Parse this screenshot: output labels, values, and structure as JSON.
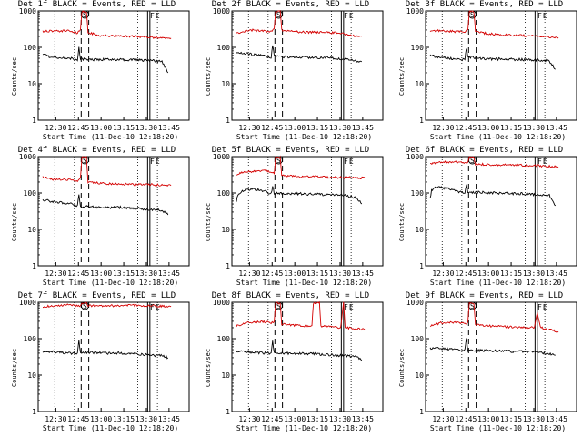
{
  "chart_data": {
    "type": "line",
    "ylabel": "Counts/sec",
    "xlabel": "Start Time (11-Dec-10 12:18:20)",
    "yscale": "log",
    "ylim": [
      1,
      1000
    ],
    "y_ticks": [
      {
        "value": 1,
        "label": "1"
      },
      {
        "value": 10,
        "label": "10"
      },
      {
        "value": 100,
        "label": "100"
      },
      {
        "value": 1000,
        "label": "1000"
      }
    ],
    "x_range_minutes": [
      0,
      100
    ],
    "x_ticks": [
      {
        "value": 11.67,
        "label": "12:30"
      },
      {
        "value": 26.67,
        "label": "12:45"
      },
      {
        "value": 41.67,
        "label": "13:00"
      },
      {
        "value": 56.67,
        "label": "13:15"
      },
      {
        "value": 71.67,
        "label": "13:30"
      },
      {
        "value": 86.67,
        "label": "13:45"
      }
    ],
    "markers": {
      "S": {
        "label": "S",
        "span": [
          28.5,
          33.5
        ]
      },
      "F": {
        "label": "F",
        "at": 73.5
      },
      "E": {
        "label": "E",
        "at": 77.0
      }
    },
    "dotted_lines": [
      11.0,
      24.0,
      66.0,
      79.0
    ],
    "dashed_lines": [
      28.5,
      33.5
    ],
    "solid_lines": [
      72.5,
      74.0
    ],
    "series_colors": {
      "events": "#000000",
      "lld": "#d40000"
    },
    "panels": [
      {
        "title": "Det 1f BLACK = Events, RED = LLD",
        "lld": [
          [
            3,
            270
          ],
          [
            10,
            285
          ],
          [
            20,
            280
          ],
          [
            26,
            250
          ],
          [
            28,
            300
          ],
          [
            29,
            950
          ],
          [
            32,
            950
          ],
          [
            33,
            260
          ],
          [
            40,
            210
          ],
          [
            50,
            205
          ],
          [
            60,
            200
          ],
          [
            70,
            195
          ],
          [
            80,
            185
          ],
          [
            88,
            180
          ]
        ],
        "events": [
          [
            3,
            65
          ],
          [
            8,
            55
          ],
          [
            15,
            52
          ],
          [
            22,
            50
          ],
          [
            26,
            42
          ],
          [
            27,
            100
          ],
          [
            28,
            48
          ],
          [
            35,
            45
          ],
          [
            45,
            47
          ],
          [
            55,
            46
          ],
          [
            65,
            45
          ],
          [
            75,
            44
          ],
          [
            82,
            40
          ],
          [
            86,
            20
          ]
        ]
      },
      {
        "title": "Det 2f BLACK = Events, RED = LLD",
        "lld": [
          [
            3,
            240
          ],
          [
            12,
            300
          ],
          [
            20,
            280
          ],
          [
            26,
            270
          ],
          [
            28,
            320
          ],
          [
            29,
            950
          ],
          [
            32,
            950
          ],
          [
            33,
            300
          ],
          [
            45,
            260
          ],
          [
            55,
            260
          ],
          [
            65,
            250
          ],
          [
            72,
            250
          ],
          [
            80,
            210
          ],
          [
            86,
            200
          ]
        ],
        "events": [
          [
            3,
            75
          ],
          [
            8,
            70
          ],
          [
            15,
            62
          ],
          [
            22,
            58
          ],
          [
            26,
            52
          ],
          [
            27,
            120
          ],
          [
            28,
            58
          ],
          [
            35,
            55
          ],
          [
            45,
            54
          ],
          [
            55,
            52
          ],
          [
            65,
            52
          ],
          [
            72,
            48
          ],
          [
            80,
            45
          ],
          [
            86,
            40
          ]
        ]
      },
      {
        "title": "Det 3f BLACK = Events, RED = LLD",
        "lld": [
          [
            3,
            290
          ],
          [
            10,
            290
          ],
          [
            20,
            270
          ],
          [
            26,
            270
          ],
          [
            28,
            300
          ],
          [
            29,
            950
          ],
          [
            32,
            950
          ],
          [
            33,
            260
          ],
          [
            45,
            230
          ],
          [
            55,
            220
          ],
          [
            65,
            210
          ],
          [
            75,
            200
          ],
          [
            82,
            195
          ],
          [
            88,
            185
          ]
        ],
        "events": [
          [
            3,
            60
          ],
          [
            8,
            55
          ],
          [
            15,
            50
          ],
          [
            22,
            48
          ],
          [
            26,
            45
          ],
          [
            27,
            95
          ],
          [
            28,
            55
          ],
          [
            35,
            50
          ],
          [
            45,
            48
          ],
          [
            55,
            47
          ],
          [
            65,
            46
          ],
          [
            75,
            45
          ],
          [
            82,
            42
          ],
          [
            86,
            25
          ]
        ]
      },
      {
        "title": "Det 4f BLACK = Events, RED = LLD",
        "lld": [
          [
            3,
            280
          ],
          [
            10,
            240
          ],
          [
            20,
            230
          ],
          [
            26,
            220
          ],
          [
            28,
            250
          ],
          [
            29,
            950
          ],
          [
            32,
            950
          ],
          [
            33,
            200
          ],
          [
            45,
            180
          ],
          [
            55,
            175
          ],
          [
            65,
            170
          ],
          [
            75,
            170
          ],
          [
            82,
            165
          ],
          [
            88,
            160
          ]
        ],
        "events": [
          [
            3,
            65
          ],
          [
            8,
            60
          ],
          [
            15,
            55
          ],
          [
            22,
            50
          ],
          [
            26,
            45
          ],
          [
            27,
            90
          ],
          [
            28,
            42
          ],
          [
            35,
            42
          ],
          [
            45,
            40
          ],
          [
            55,
            40
          ],
          [
            65,
            38
          ],
          [
            75,
            35
          ],
          [
            82,
            33
          ],
          [
            86,
            25
          ]
        ]
      },
      {
        "title": "Det 5f BLACK = Events, RED = LLD",
        "lld": [
          [
            3,
            330
          ],
          [
            10,
            380
          ],
          [
            20,
            420
          ],
          [
            26,
            380
          ],
          [
            28,
            330
          ],
          [
            29,
            950
          ],
          [
            32,
            950
          ],
          [
            33,
            300
          ],
          [
            45,
            280
          ],
          [
            55,
            280
          ],
          [
            65,
            270
          ],
          [
            75,
            265
          ],
          [
            82,
            265
          ],
          [
            88,
            260
          ]
        ],
        "events": [
          [
            3,
            60
          ],
          [
            4,
            90
          ],
          [
            8,
            120
          ],
          [
            15,
            130
          ],
          [
            22,
            110
          ],
          [
            26,
            95
          ],
          [
            27,
            150
          ],
          [
            28,
            100
          ],
          [
            35,
            95
          ],
          [
            45,
            95
          ],
          [
            55,
            92
          ],
          [
            65,
            90
          ],
          [
            75,
            85
          ],
          [
            82,
            75
          ],
          [
            86,
            50
          ]
        ]
      },
      {
        "title": "Det 6f BLACK = Events, RED = LLD",
        "lld": [
          [
            3,
            650
          ],
          [
            10,
            700
          ],
          [
            20,
            720
          ],
          [
            26,
            660
          ],
          [
            28,
            660
          ],
          [
            29,
            950
          ],
          [
            32,
            950
          ],
          [
            33,
            620
          ],
          [
            45,
            600
          ],
          [
            55,
            590
          ],
          [
            65,
            580
          ],
          [
            75,
            560
          ],
          [
            82,
            540
          ],
          [
            88,
            520
          ]
        ],
        "events": [
          [
            3,
            70
          ],
          [
            4,
            120
          ],
          [
            8,
            150
          ],
          [
            15,
            130
          ],
          [
            22,
            110
          ],
          [
            26,
            100
          ],
          [
            27,
            160
          ],
          [
            28,
            105
          ],
          [
            35,
            105
          ],
          [
            45,
            100
          ],
          [
            55,
            98
          ],
          [
            65,
            95
          ],
          [
            75,
            90
          ],
          [
            82,
            85
          ],
          [
            86,
            45
          ]
        ]
      },
      {
        "title": "Det 7f BLACK = Events, RED = LLD",
        "lld": [
          [
            3,
            750
          ],
          [
            10,
            800
          ],
          [
            20,
            850
          ],
          [
            26,
            800
          ],
          [
            28,
            800
          ],
          [
            29,
            950
          ],
          [
            32,
            950
          ],
          [
            33,
            800
          ],
          [
            45,
            800
          ],
          [
            55,
            810
          ],
          [
            65,
            820
          ],
          [
            75,
            800
          ],
          [
            82,
            780
          ],
          [
            88,
            760
          ]
        ],
        "events": [
          [
            3,
            40
          ],
          [
            8,
            45
          ],
          [
            15,
            42
          ],
          [
            22,
            40
          ],
          [
            26,
            38
          ],
          [
            27,
            90
          ],
          [
            28,
            40
          ],
          [
            35,
            42
          ],
          [
            45,
            40
          ],
          [
            55,
            40
          ],
          [
            65,
            38
          ],
          [
            75,
            35
          ],
          [
            82,
            35
          ],
          [
            86,
            30
          ]
        ]
      },
      {
        "title": "Det 8f BLACK = Events, RED = LLD",
        "lld": [
          [
            3,
            220
          ],
          [
            10,
            280
          ],
          [
            20,
            300
          ],
          [
            26,
            270
          ],
          [
            28,
            290
          ],
          [
            29,
            950
          ],
          [
            32,
            950
          ],
          [
            33,
            250
          ],
          [
            45,
            230
          ],
          [
            53,
            220
          ],
          [
            54,
            950
          ],
          [
            58,
            950
          ],
          [
            59,
            220
          ],
          [
            65,
            210
          ],
          [
            72,
            200
          ],
          [
            74,
            950
          ],
          [
            75,
            200
          ],
          [
            82,
            190
          ],
          [
            88,
            180
          ]
        ],
        "events": [
          [
            3,
            45
          ],
          [
            8,
            45
          ],
          [
            15,
            42
          ],
          [
            22,
            40
          ],
          [
            26,
            38
          ],
          [
            27,
            85
          ],
          [
            28,
            40
          ],
          [
            35,
            40
          ],
          [
            45,
            40
          ],
          [
            55,
            38
          ],
          [
            65,
            36
          ],
          [
            75,
            34
          ],
          [
            82,
            32
          ],
          [
            86,
            25
          ]
        ]
      },
      {
        "title": "Det 9f BLACK = Events, RED = LLD",
        "lld": [
          [
            3,
            220
          ],
          [
            10,
            270
          ],
          [
            20,
            280
          ],
          [
            26,
            260
          ],
          [
            28,
            280
          ],
          [
            29,
            950
          ],
          [
            32,
            950
          ],
          [
            33,
            240
          ],
          [
            45,
            220
          ],
          [
            55,
            210
          ],
          [
            65,
            200
          ],
          [
            72,
            200
          ],
          [
            74,
            500
          ],
          [
            76,
            200
          ],
          [
            82,
            180
          ],
          [
            88,
            150
          ]
        ],
        "events": [
          [
            3,
            55
          ],
          [
            8,
            55
          ],
          [
            15,
            52
          ],
          [
            22,
            50
          ],
          [
            26,
            48
          ],
          [
            27,
            100
          ],
          [
            28,
            48
          ],
          [
            35,
            48
          ],
          [
            45,
            46
          ],
          [
            55,
            45
          ],
          [
            65,
            44
          ],
          [
            75,
            42
          ],
          [
            82,
            38
          ],
          [
            86,
            35
          ]
        ]
      }
    ]
  }
}
